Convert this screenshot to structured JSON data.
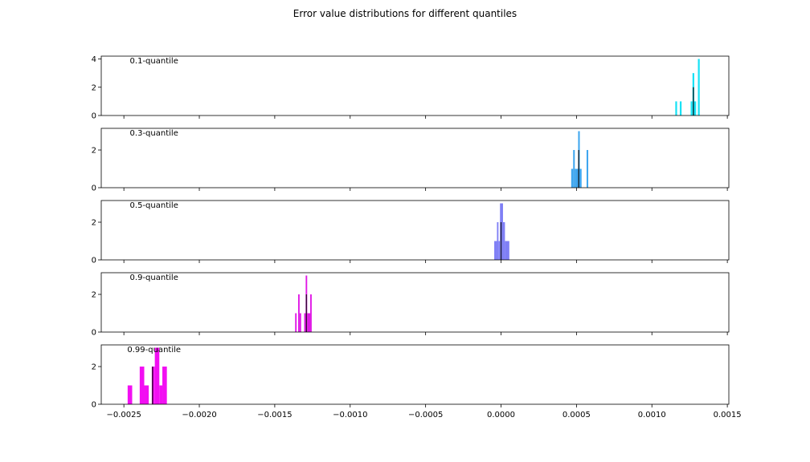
{
  "chart_data": {
    "type": "bar",
    "title": "Error value distributions for different quantiles",
    "xlim": [
      -0.00265,
      0.00151
    ],
    "x_ticks": [
      "−0.0025",
      "−0.0020",
      "−0.0015",
      "−0.0010",
      "−0.0005",
      "0.0000",
      "0.0005",
      "0.0010",
      "0.0015"
    ],
    "x_tick_values": [
      -0.0025,
      -0.002,
      -0.0015,
      -0.001,
      -0.0005,
      0.0,
      0.0005,
      0.001,
      0.0015
    ],
    "grid": false,
    "panels": [
      {
        "label": "0.1-quantile",
        "color": "#19e2f5",
        "ylim": [
          0,
          4.2
        ],
        "y_ticks": [
          0,
          2,
          4
        ],
        "mean_line": 0.001275,
        "bins": [
          {
            "x0": 0.001155,
            "x1": 0.001167,
            "count": 1
          },
          {
            "x0": 0.001185,
            "x1": 0.001197,
            "count": 1
          },
          {
            "x0": 0.001257,
            "x1": 0.001269,
            "count": 1
          },
          {
            "x0": 0.001269,
            "x1": 0.001281,
            "count": 3
          },
          {
            "x0": 0.001281,
            "x1": 0.001293,
            "count": 1
          },
          {
            "x0": 0.001305,
            "x1": 0.001317,
            "count": 4
          }
        ]
      },
      {
        "label": "0.3-quantile",
        "color": "#3fa6ef",
        "ylim": [
          0,
          3.15
        ],
        "y_ticks": [
          0,
          2
        ],
        "mean_line": 0.000515,
        "bins": [
          {
            "x0": 0.000465,
            "x1": 0.000478,
            "count": 1
          },
          {
            "x0": 0.000478,
            "x1": 0.000489,
            "count": 2
          },
          {
            "x0": 0.000489,
            "x1": 0.000511,
            "count": 1
          },
          {
            "x0": 0.000511,
            "x1": 0.000522,
            "count": 3
          },
          {
            "x0": 0.000522,
            "x1": 0.000534,
            "count": 1
          },
          {
            "x0": 0.000567,
            "x1": 0.000578,
            "count": 2
          }
        ]
      },
      {
        "label": "0.5-quantile",
        "color": "#7f7ff5",
        "ylim": [
          0,
          3.15
        ],
        "y_ticks": [
          0,
          2
        ],
        "mean_line": 0.0,
        "bins": [
          {
            "x0": -4.5e-05,
            "x1": -2.7e-05,
            "count": 1
          },
          {
            "x0": -2.7e-05,
            "x1": -1.7e-05,
            "count": 2
          },
          {
            "x0": -1.7e-05,
            "x1": -7e-06,
            "count": 1
          },
          {
            "x0": -7e-06,
            "x1": 1.3e-05,
            "count": 3
          },
          {
            "x0": 1.3e-05,
            "x1": 2.6e-05,
            "count": 2
          },
          {
            "x0": 2.6e-05,
            "x1": 5.5e-05,
            "count": 1
          }
        ]
      },
      {
        "label": "0.9-quantile",
        "color": "#e018e6",
        "ylim": [
          0,
          3.15
        ],
        "y_ticks": [
          0,
          2
        ],
        "mean_line": -0.00129,
        "bins": [
          {
            "x0": -0.001365,
            "x1": -0.001355,
            "count": 1
          },
          {
            "x0": -0.001345,
            "x1": -0.001335,
            "count": 2
          },
          {
            "x0": -0.001335,
            "x1": -0.001325,
            "count": 1
          },
          {
            "x0": -0.001305,
            "x1": -0.001295,
            "count": 1
          },
          {
            "x0": -0.001295,
            "x1": -0.001285,
            "count": 3
          },
          {
            "x0": -0.001285,
            "x1": -0.001265,
            "count": 1
          },
          {
            "x0": -0.001265,
            "x1": -0.001255,
            "count": 2
          }
        ]
      },
      {
        "label": "0.99-quantile",
        "color": "#f20ff2",
        "ylim": [
          0,
          3.15
        ],
        "y_ticks": [
          0,
          2
        ],
        "mean_line": -0.00231,
        "bins": [
          {
            "x0": -0.002475,
            "x1": -0.002445,
            "count": 1
          },
          {
            "x0": -0.002395,
            "x1": -0.002365,
            "count": 2
          },
          {
            "x0": -0.002365,
            "x1": -0.002335,
            "count": 1
          },
          {
            "x0": -0.002315,
            "x1": -0.002295,
            "count": 2
          },
          {
            "x0": -0.002295,
            "x1": -0.002265,
            "count": 3
          },
          {
            "x0": -0.002265,
            "x1": -0.002245,
            "count": 1
          },
          {
            "x0": -0.002245,
            "x1": -0.002215,
            "count": 2
          }
        ]
      }
    ]
  }
}
